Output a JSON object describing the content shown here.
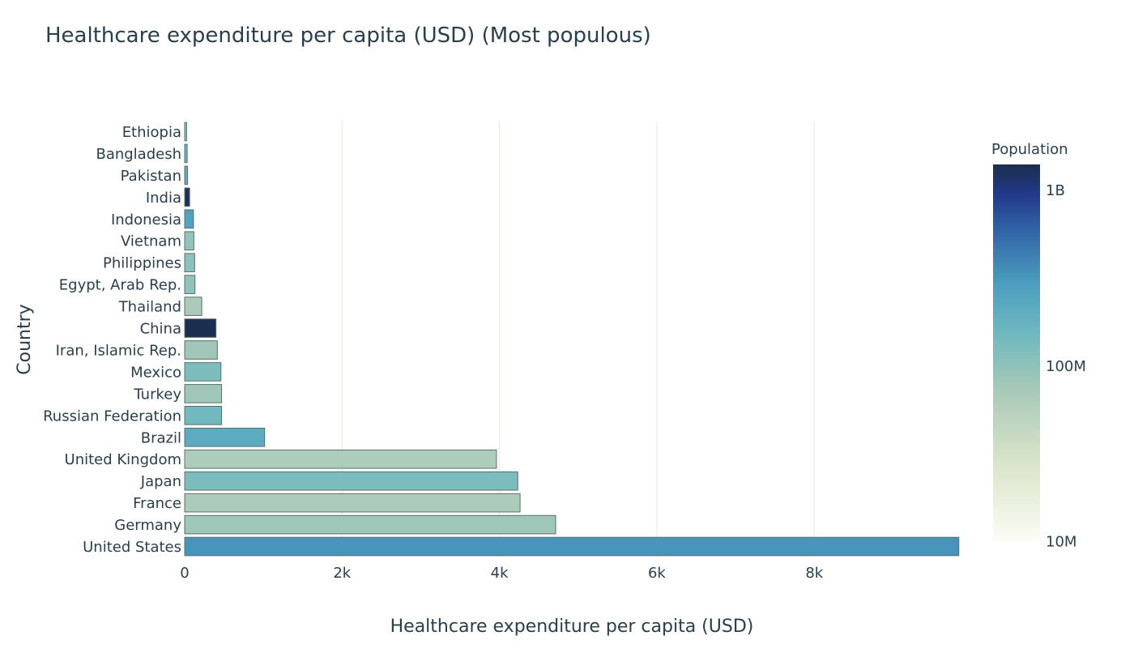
{
  "chart_data": {
    "type": "bar",
    "orientation": "horizontal",
    "title": "Healthcare expenditure per capita (USD) (Most populous)",
    "xlabel": "Healthcare expenditure per capita (USD)",
    "ylabel": "Country",
    "xlim": [
      0,
      9850
    ],
    "xticks": [
      {
        "value": 0,
        "label": "0"
      },
      {
        "value": 2000,
        "label": "2k"
      },
      {
        "value": 4000,
        "label": "4k"
      },
      {
        "value": 6000,
        "label": "6k"
      },
      {
        "value": 8000,
        "label": "8k"
      }
    ],
    "grid": true,
    "categories": [
      "Ethiopia",
      "Bangladesh",
      "Pakistan",
      "India",
      "Indonesia",
      "Vietnam",
      "Philippines",
      "Egypt, Arab Rep.",
      "Thailand",
      "China",
      "Iran, Islamic Rep.",
      "Mexico",
      "Turkey",
      "Russian Federation",
      "Brazil",
      "United Kingdom",
      "Japan",
      "France",
      "Germany",
      "United States"
    ],
    "values": [
      25,
      32,
      36,
      63,
      112,
      117,
      127,
      131,
      217,
      398,
      415,
      461,
      469,
      469,
      1016,
      3962,
      4233,
      4262,
      4714,
      9837
    ],
    "population": [
      102000000,
      163000000,
      197000000,
      1339000000,
      264000000,
      95000000,
      105000000,
      97000000,
      69000000,
      1386000000,
      81000000,
      129000000,
      81000000,
      144000000,
      209000000,
      66000000,
      127000000,
      67000000,
      83000000,
      325000000
    ],
    "colorbar": {
      "title": "Population",
      "scale": "log",
      "range": [
        10000000,
        1400000000
      ],
      "ticks": [
        {
          "value": 10000000,
          "label": "10M"
        },
        {
          "value": 100000000,
          "label": "100M"
        },
        {
          "value": 1000000000,
          "label": "1B"
        }
      ],
      "colorscale": [
        [
          0.0,
          "#fbfdf5"
        ],
        [
          0.2,
          "#dbe5cc"
        ],
        [
          0.4,
          "#a9c9b8"
        ],
        [
          0.55,
          "#6eb8bf"
        ],
        [
          0.68,
          "#4d9fc0"
        ],
        [
          0.82,
          "#3266a8"
        ],
        [
          0.92,
          "#23398a"
        ],
        [
          1.0,
          "#1c2e4e"
        ]
      ]
    },
    "legend_position": "right"
  }
}
